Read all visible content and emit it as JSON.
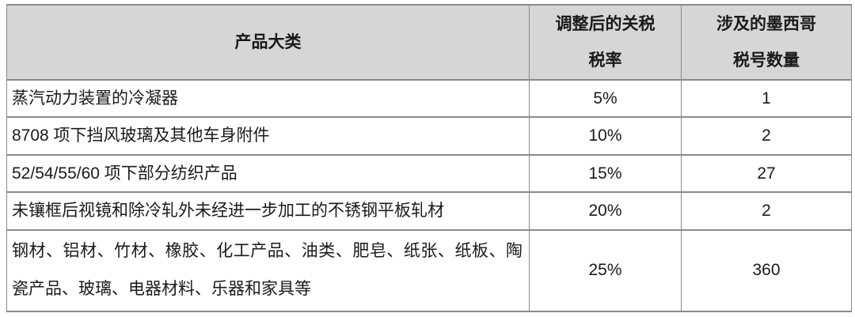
{
  "colors": {
    "page_background": "#ffffff",
    "header_background": "#d6d6d6",
    "border": "#8a8a8a",
    "text": "#1a1a1a"
  },
  "table": {
    "headers": [
      {
        "lines": [
          "产品大类"
        ]
      },
      {
        "lines": [
          "调整后的关税",
          "税率"
        ]
      },
      {
        "lines": [
          "涉及的墨西哥",
          "税号数量"
        ]
      }
    ],
    "rows": [
      {
        "category": "蒸汽动力装置的冷凝器",
        "rate": "5%",
        "count": "1"
      },
      {
        "category": "8708 项下挡风玻璃及其他车身附件",
        "rate": "10%",
        "count": "2"
      },
      {
        "category": "52/54/55/60 项下部分纺织产品",
        "rate": "15%",
        "count": "27"
      },
      {
        "category": "未镶框后视镜和除冷轧外未经进一步加工的不锈钢平板轧材",
        "rate": "20%",
        "count": "2"
      },
      {
        "category": "钢材、铝材、竹材、橡胶、化工产品、油类、肥皂、纸张、纸板、陶瓷产品、玻璃、电器材料、乐器和家具等",
        "rate": "25%",
        "count": "360"
      }
    ]
  },
  "chart_data": {
    "type": "table",
    "title": "",
    "columns": [
      "产品大类",
      "调整后的关税税率",
      "涉及的墨西哥税号数量"
    ],
    "rows": [
      [
        "蒸汽动力装置的冷凝器",
        "5%",
        1
      ],
      [
        "8708 项下挡风玻璃及其他车身附件",
        "10%",
        2
      ],
      [
        "52/54/55/60 项下部分纺织产品",
        "15%",
        27
      ],
      [
        "未镶框后视镜和除冷轧外未经进一步加工的不锈钢平板轧材",
        "20%",
        2
      ],
      [
        "钢材、铝材、竹材、橡胶、化工产品、油类、肥皂、纸张、纸板、陶瓷产品、玻璃、电器材料、乐器和家具等",
        "25%",
        360
      ]
    ]
  }
}
